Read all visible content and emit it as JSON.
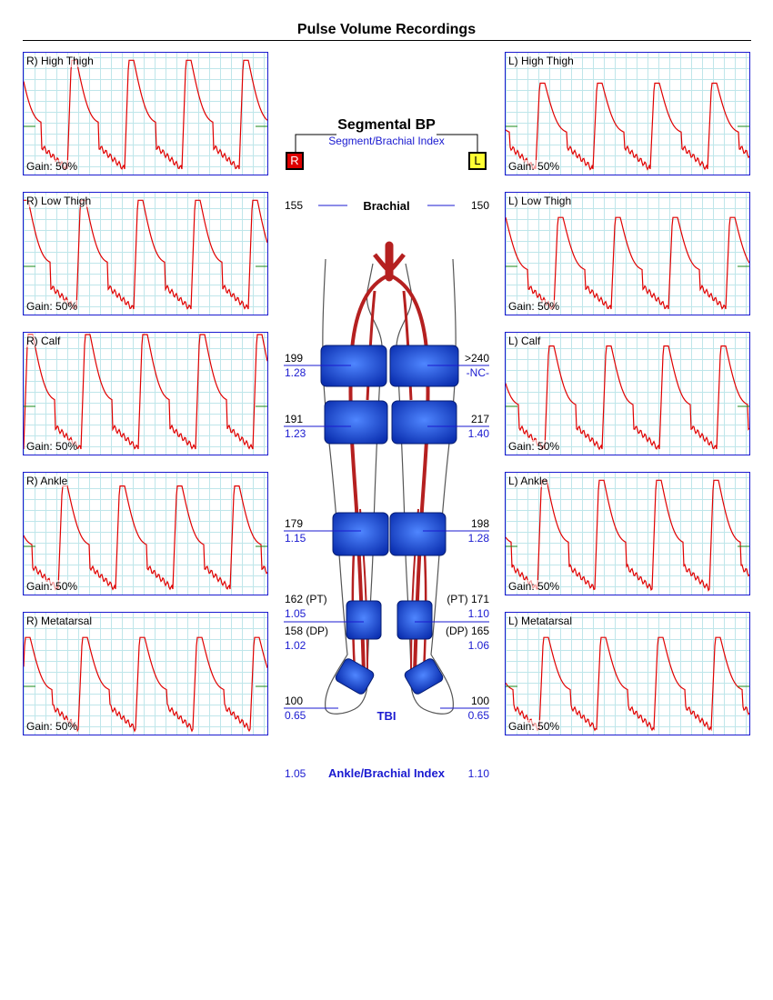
{
  "title": "Pulse Volume Recordings",
  "colors": {
    "waveform": "#e00000",
    "frame": "#1a1ad0",
    "grid": "#bfe6ea",
    "index_text": "#1a1ad0",
    "right_box": "#dd0000",
    "left_box": "#ffff33"
  },
  "panels": {
    "right": [
      {
        "label": "R) High Thigh",
        "gain": "Gain: 50%"
      },
      {
        "label": "R) Low Thigh",
        "gain": "Gain: 50%"
      },
      {
        "label": "R) Calf",
        "gain": "Gain: 50%"
      },
      {
        "label": "R) Ankle",
        "gain": "Gain: 50%"
      },
      {
        "label": "R) Metatarsal",
        "gain": "Gain: 50%"
      }
    ],
    "left": [
      {
        "label": "L) High Thigh",
        "gain": "Gain: 50%"
      },
      {
        "label": "L) Low Thigh",
        "gain": "Gain: 50%"
      },
      {
        "label": "L) Calf",
        "gain": "Gain: 50%"
      },
      {
        "label": "L) Ankle",
        "gain": "Gain: 50%"
      },
      {
        "label": "L) Metatarsal",
        "gain": "Gain: 50%"
      }
    ]
  },
  "segmental": {
    "title": "Segmental BP",
    "subtitle": "Segment/Brachial Index",
    "right_box": "R",
    "left_box": "L",
    "brachial": {
      "label": "Brachial",
      "right": "155",
      "left": "150"
    },
    "high_thigh": {
      "right_bp": "199",
      "right_index": "1.28",
      "left_bp": ">240",
      "left_index": "-NC-"
    },
    "low_thigh": {
      "right_bp": "191",
      "right_index": "1.23",
      "left_bp": "217",
      "left_index": "1.40"
    },
    "calf": {
      "right_bp": "179",
      "right_index": "1.15",
      "left_bp": "198",
      "left_index": "1.28"
    },
    "ankle": {
      "right_pt": "162 (PT)",
      "right_pt_index": "1.05",
      "right_dp": "158 (DP)",
      "right_dp_index": "1.02",
      "left_pt": "(PT) 171",
      "left_pt_index": "1.10",
      "left_dp": "(DP) 165",
      "left_dp_index": "1.06"
    },
    "toe": {
      "label": "TBI",
      "right_bp": "100",
      "right_index": "0.65",
      "left_bp": "100",
      "left_index": "0.65"
    }
  },
  "abi": {
    "label": "Ankle/Brachial Index",
    "right": "1.05",
    "left": "1.10"
  }
}
